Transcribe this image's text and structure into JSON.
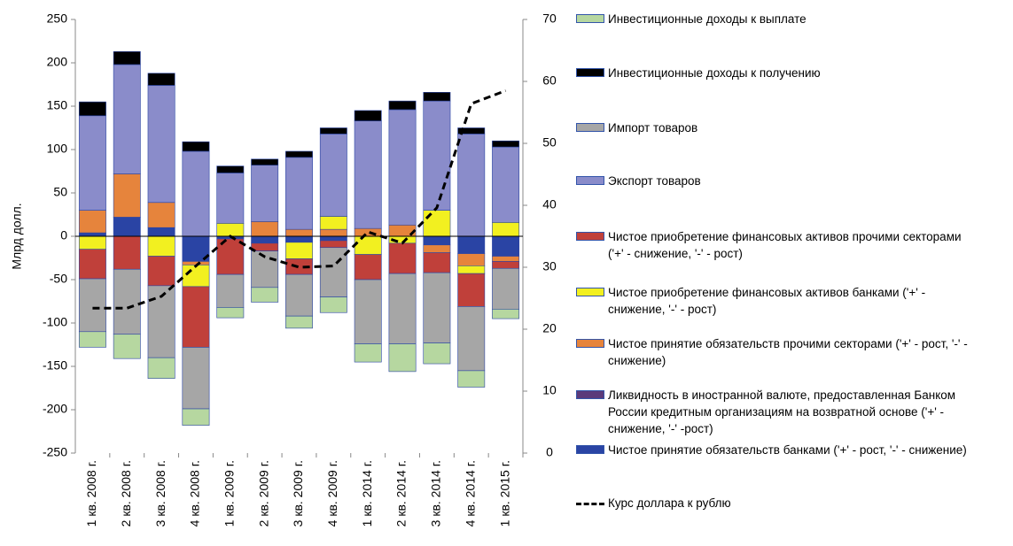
{
  "chart_data": {
    "type": "bar",
    "y_label": "Млрд долл.",
    "categories": [
      "1 кв. 2008 г.",
      "2 кв. 2008 г.",
      "3 кв. 2008 г.",
      "4 кв. 2008 г.",
      "1 кв. 2009 г.",
      "2 кв. 2009 г.",
      "3 кв. 2009 г.",
      "4 кв. 2009 г.",
      "1 кв. 2014 г.",
      "2 кв. 2014 г.",
      "3 кв. 2014 г.",
      "4 кв. 2014 г.",
      "1 кв. 2015 г."
    ],
    "ylim": [
      -250,
      250
    ],
    "yticks": [
      -250,
      -200,
      -150,
      -100,
      -50,
      0,
      50,
      100,
      150,
      200,
      250
    ],
    "y2lim": [
      0,
      70
    ],
    "y2ticks": [
      0,
      10,
      20,
      30,
      40,
      50,
      60,
      70
    ],
    "series": [
      {
        "name": "Чистое принятие обязательств банками ('+' - рост, '-' - снижение)",
        "color": "#2a44a4",
        "values": [
          4,
          22,
          10,
          -29,
          -3,
          -8,
          -7,
          -5,
          0,
          0,
          -10,
          -20,
          -23
        ]
      },
      {
        "name": "Ликвидность в иностранной валюте, предоставленная Банком России кредитным организациям на возвратной основе ('+' - снижение, '-' -рост)",
        "color": "#5b3a7a",
        "values": [
          0,
          0,
          0,
          0,
          0,
          0,
          0,
          0,
          0,
          0,
          0,
          0,
          0
        ]
      },
      {
        "name": "Чистое принятие обязательств прочими секторами ('+' - рост, '-' - снижение)",
        "color": "#e6843c",
        "values": [
          26,
          50,
          29,
          -4,
          0,
          17,
          8,
          8,
          9,
          13,
          -9,
          -14,
          -6
        ]
      },
      {
        "name": "Чистое приобретение финансовых активов банками ('+' - снижение, '-' - рост)",
        "color": "#f2f020",
        "values": [
          -15,
          0,
          -23,
          -25,
          15,
          0,
          -19,
          15,
          -21,
          -8,
          30,
          -9,
          16
        ]
      },
      {
        "name": "Чистое приобретение финансовых активов прочими секторами ('+' - снижение, '-' - рост)",
        "color": "#c0403a",
        "values": [
          -34,
          -38,
          -34,
          -70,
          -41,
          -9,
          -18,
          -8,
          -29,
          -35,
          -23,
          -38,
          -8
        ]
      },
      {
        "name": "Экспорт товаров",
        "color": "#8a8cca",
        "values": [
          109,
          126,
          135,
          98,
          58,
          65,
          83,
          95,
          124,
          133,
          126,
          118,
          87
        ]
      },
      {
        "name": "Импорт товаров",
        "color": "#a6a6a6",
        "values": [
          -61,
          -75,
          -83,
          -71,
          -38,
          -42,
          -48,
          -57,
          -74,
          -81,
          -81,
          -74,
          -47
        ]
      },
      {
        "name": "Инвестиционные доходы к получению",
        "color": "#000000",
        "values": [
          16,
          15,
          14,
          11,
          8,
          7,
          7,
          7,
          12,
          10,
          10,
          7,
          7
        ]
      },
      {
        "name": "Инвестиционные доходы к выплате",
        "color": "#b6d7a0",
        "values": [
          -18,
          -28,
          -24,
          -19,
          -12,
          -17,
          -14,
          -18,
          -21,
          -32,
          -24,
          -19,
          -11
        ]
      },
      {
        "name": "Курс доллара к рублю",
        "color": "#000000",
        "axis": "y2",
        "values": [
          23.4,
          23.4,
          25.3,
          30.2,
          35,
          31.7,
          30,
          30.2,
          35.7,
          33.9,
          39.6,
          56.4,
          58.5
        ]
      }
    ]
  }
}
